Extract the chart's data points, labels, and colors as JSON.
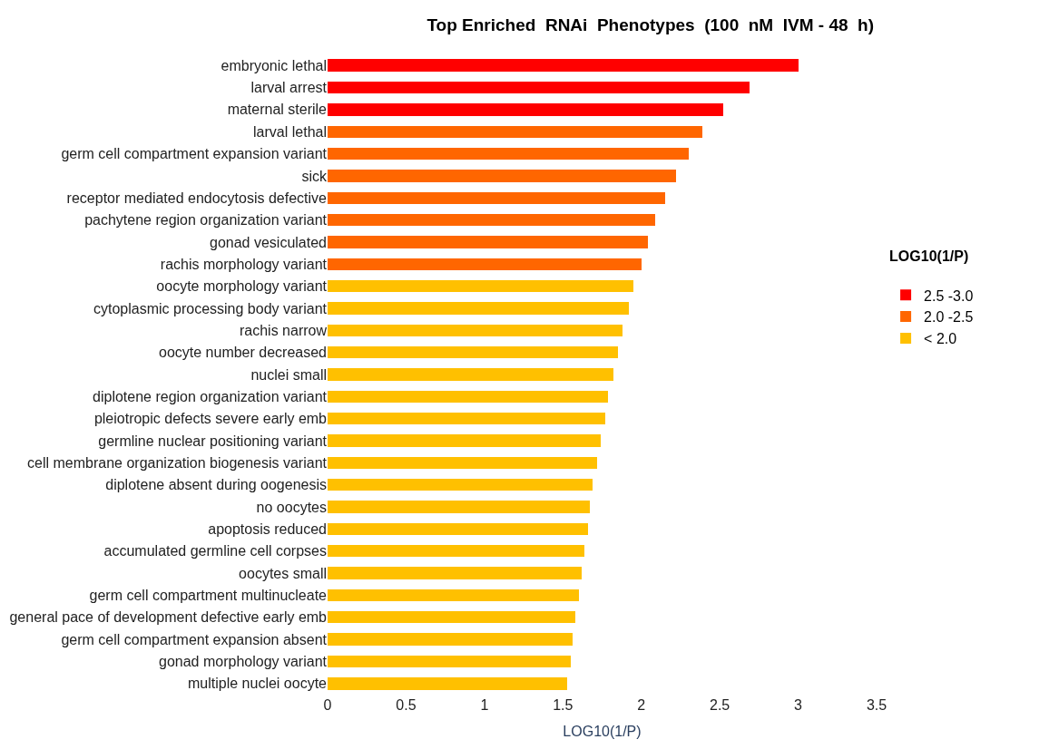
{
  "chart_data": {
    "type": "bar",
    "orientation": "horizontal",
    "stacked": true,
    "title": "Top Enriched  RNAi  Phenotypes  (100  nM  IVM - 48  h)",
    "xlabel": "LOG10(1/P)",
    "legend_title": "LOG10(1/P)",
    "legend": "right",
    "categories": [
      "embryonic lethal",
      "larval arrest",
      "maternal sterile",
      "larval lethal",
      "germ cell compartment expansion variant",
      "sick",
      "receptor mediated endocytosis defective",
      "pachytene region organization variant",
      "gonad vesiculated",
      "rachis morphology variant",
      "oocyte morphology variant",
      "cytoplasmic processing body variant",
      "rachis narrow",
      "oocyte number decreased",
      "nuclei small",
      "diplotene region organization variant",
      "pleiotropic defects severe early emb",
      "germline nuclear positioning variant",
      "cell membrane organization biogenesis variant",
      "diplotene absent during oogenesis",
      "no oocytes",
      "apoptosis reduced",
      "accumulated germline cell corpses",
      "oocytes small",
      "germ cell compartment multinucleate",
      "general pace of development defective early emb",
      "germ cell compartment expansion absent",
      "gonad morphology variant",
      "multiple nuclei oocyte"
    ],
    "series": [
      {
        "name": "2.5 -3.0",
        "color": "#ff0000",
        "values": [
          3.0,
          2.69,
          2.52,
          null,
          null,
          null,
          null,
          null,
          null,
          null,
          null,
          null,
          null,
          null,
          null,
          null,
          null,
          null,
          null,
          null,
          null,
          null,
          null,
          null,
          null,
          null,
          null,
          null,
          null
        ]
      },
      {
        "name": "2.0 -2.5",
        "color": "#ff6600",
        "values": [
          null,
          null,
          null,
          2.39,
          2.3,
          2.22,
          2.15,
          2.09,
          2.04,
          2.0,
          null,
          null,
          null,
          null,
          null,
          null,
          null,
          null,
          null,
          null,
          null,
          null,
          null,
          null,
          null,
          null,
          null,
          null,
          null
        ]
      },
      {
        "name": "< 2.0",
        "color": "#ffc000",
        "values": [
          null,
          null,
          null,
          null,
          null,
          null,
          null,
          null,
          null,
          null,
          1.95,
          1.92,
          1.88,
          1.85,
          1.82,
          1.79,
          1.77,
          1.74,
          1.72,
          1.69,
          1.67,
          1.66,
          1.64,
          1.62,
          1.6,
          1.58,
          1.56,
          1.55,
          1.53
        ]
      }
    ],
    "xlim": [
      0,
      3.5
    ],
    "xticks": [
      0,
      0.5,
      1,
      1.5,
      2,
      2.5,
      3,
      3.5
    ]
  }
}
